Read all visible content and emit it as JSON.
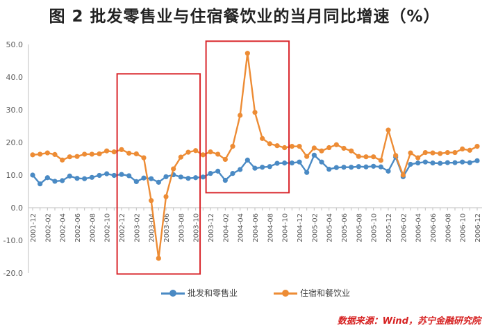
{
  "title": "图 2    批发零售业与住宿餐饮业的当月同比增速（%）",
  "source": "数据来源：Wind，苏宁金融研究院",
  "chart_data": {
    "type": "line",
    "ylim": [
      -20,
      50
    ],
    "yticks": [
      "50.0",
      "40.0",
      "30.0",
      "20.0",
      "10.0",
      "0.0",
      "-10.0",
      "-20.0"
    ],
    "ytick_values": [
      50,
      40,
      30,
      20,
      10,
      0,
      -10,
      -20
    ],
    "x": [
      "2001-12",
      "2002-01",
      "2002-02",
      "2002-03",
      "2002-04",
      "2002-05",
      "2002-06",
      "2002-07",
      "2002-08",
      "2002-09",
      "2002-10",
      "2002-11",
      "2002-12",
      "2003-01",
      "2003-02",
      "2003-03",
      "2003-04",
      "2003-05",
      "2003-06",
      "2003-07",
      "2003-08",
      "2003-09",
      "2003-10",
      "2003-11",
      "2003-12",
      "2004-01",
      "2004-02",
      "2004-03",
      "2004-04",
      "2004-05",
      "2004-06",
      "2004-07",
      "2004-08",
      "2004-09",
      "2004-10",
      "2004-11",
      "2004-12",
      "2005-01",
      "2005-02",
      "2005-03",
      "2005-04",
      "2005-05",
      "2005-06",
      "2005-07",
      "2005-08",
      "2005-09",
      "2005-10",
      "2005-11",
      "2005-12",
      "2006-01",
      "2006-02",
      "2006-03",
      "2006-04",
      "2006-05",
      "2006-06",
      "2006-07",
      "2006-08",
      "2006-09",
      "2006-10",
      "2006-11",
      "2006-12"
    ],
    "xtick_labels": [
      "2001-12",
      "2002-02",
      "2002-04",
      "2002-06",
      "2002-08",
      "2002-10",
      "2002-12",
      "2003-02",
      "2003-04",
      "2003-06",
      "2003-08",
      "2003-10",
      "2003-12",
      "2004-02",
      "2004-04",
      "2004-06",
      "2004-08",
      "2004-10",
      "2004-12",
      "2005-02",
      "2005-04",
      "2005-06",
      "2005-08",
      "2005-10",
      "2005-12",
      "2006-02",
      "2006-04",
      "2006-06",
      "2006-08",
      "2006-10",
      "2006-12"
    ],
    "series": [
      {
        "name": "批发和零售业",
        "color": "#4a8ac4",
        "values": [
          10.0,
          7.3,
          9.2,
          8.1,
          8.3,
          9.7,
          9.0,
          8.9,
          9.3,
          9.9,
          10.4,
          9.9,
          10.2,
          9.8,
          8.0,
          9.1,
          8.9,
          7.8,
          9.5,
          10.1,
          9.4,
          9.0,
          9.2,
          9.4,
          10.5,
          11.2,
          8.4,
          10.5,
          11.7,
          14.6,
          12.1,
          12.4,
          12.6,
          13.6,
          13.7,
          13.7,
          14.0,
          10.8,
          16.1,
          14.0,
          11.8,
          12.3,
          12.4,
          12.4,
          12.6,
          12.5,
          12.7,
          12.5,
          11.2,
          15.5,
          9.5,
          13.3,
          13.7,
          14.0,
          13.7,
          13.6,
          13.8,
          13.8,
          14.0,
          13.8,
          14.4
        ]
      },
      {
        "name": "住宿和餐饮业",
        "color": "#ed8c35",
        "values": [
          16.2,
          16.4,
          16.8,
          16.3,
          14.6,
          15.6,
          15.7,
          16.4,
          16.4,
          16.5,
          17.4,
          17.1,
          17.8,
          16.7,
          16.5,
          15.3,
          2.2,
          -15.5,
          3.4,
          11.9,
          15.5,
          17.0,
          17.5,
          16.2,
          17.1,
          16.4,
          14.8,
          18.8,
          28.3,
          47.3,
          29.2,
          21.2,
          19.6,
          19.0,
          18.4,
          18.8,
          18.8,
          15.7,
          18.3,
          17.4,
          18.4,
          19.3,
          18.2,
          17.4,
          15.7,
          15.6,
          15.6,
          14.5,
          23.8,
          16.0,
          10.0,
          16.8,
          15.3,
          16.9,
          16.8,
          16.6,
          16.9,
          16.9,
          18.0,
          17.6,
          18.8
        ]
      }
    ],
    "legend": "bottom",
    "grid": false,
    "highlight_boxes": [
      {
        "from": "2002-12",
        "to": "2003-10",
        "y_top": 41,
        "y_bottom": -20.3
      },
      {
        "from": "2003-12",
        "to": "2004-10",
        "y_top": 51,
        "y_bottom": 4.6
      }
    ]
  }
}
